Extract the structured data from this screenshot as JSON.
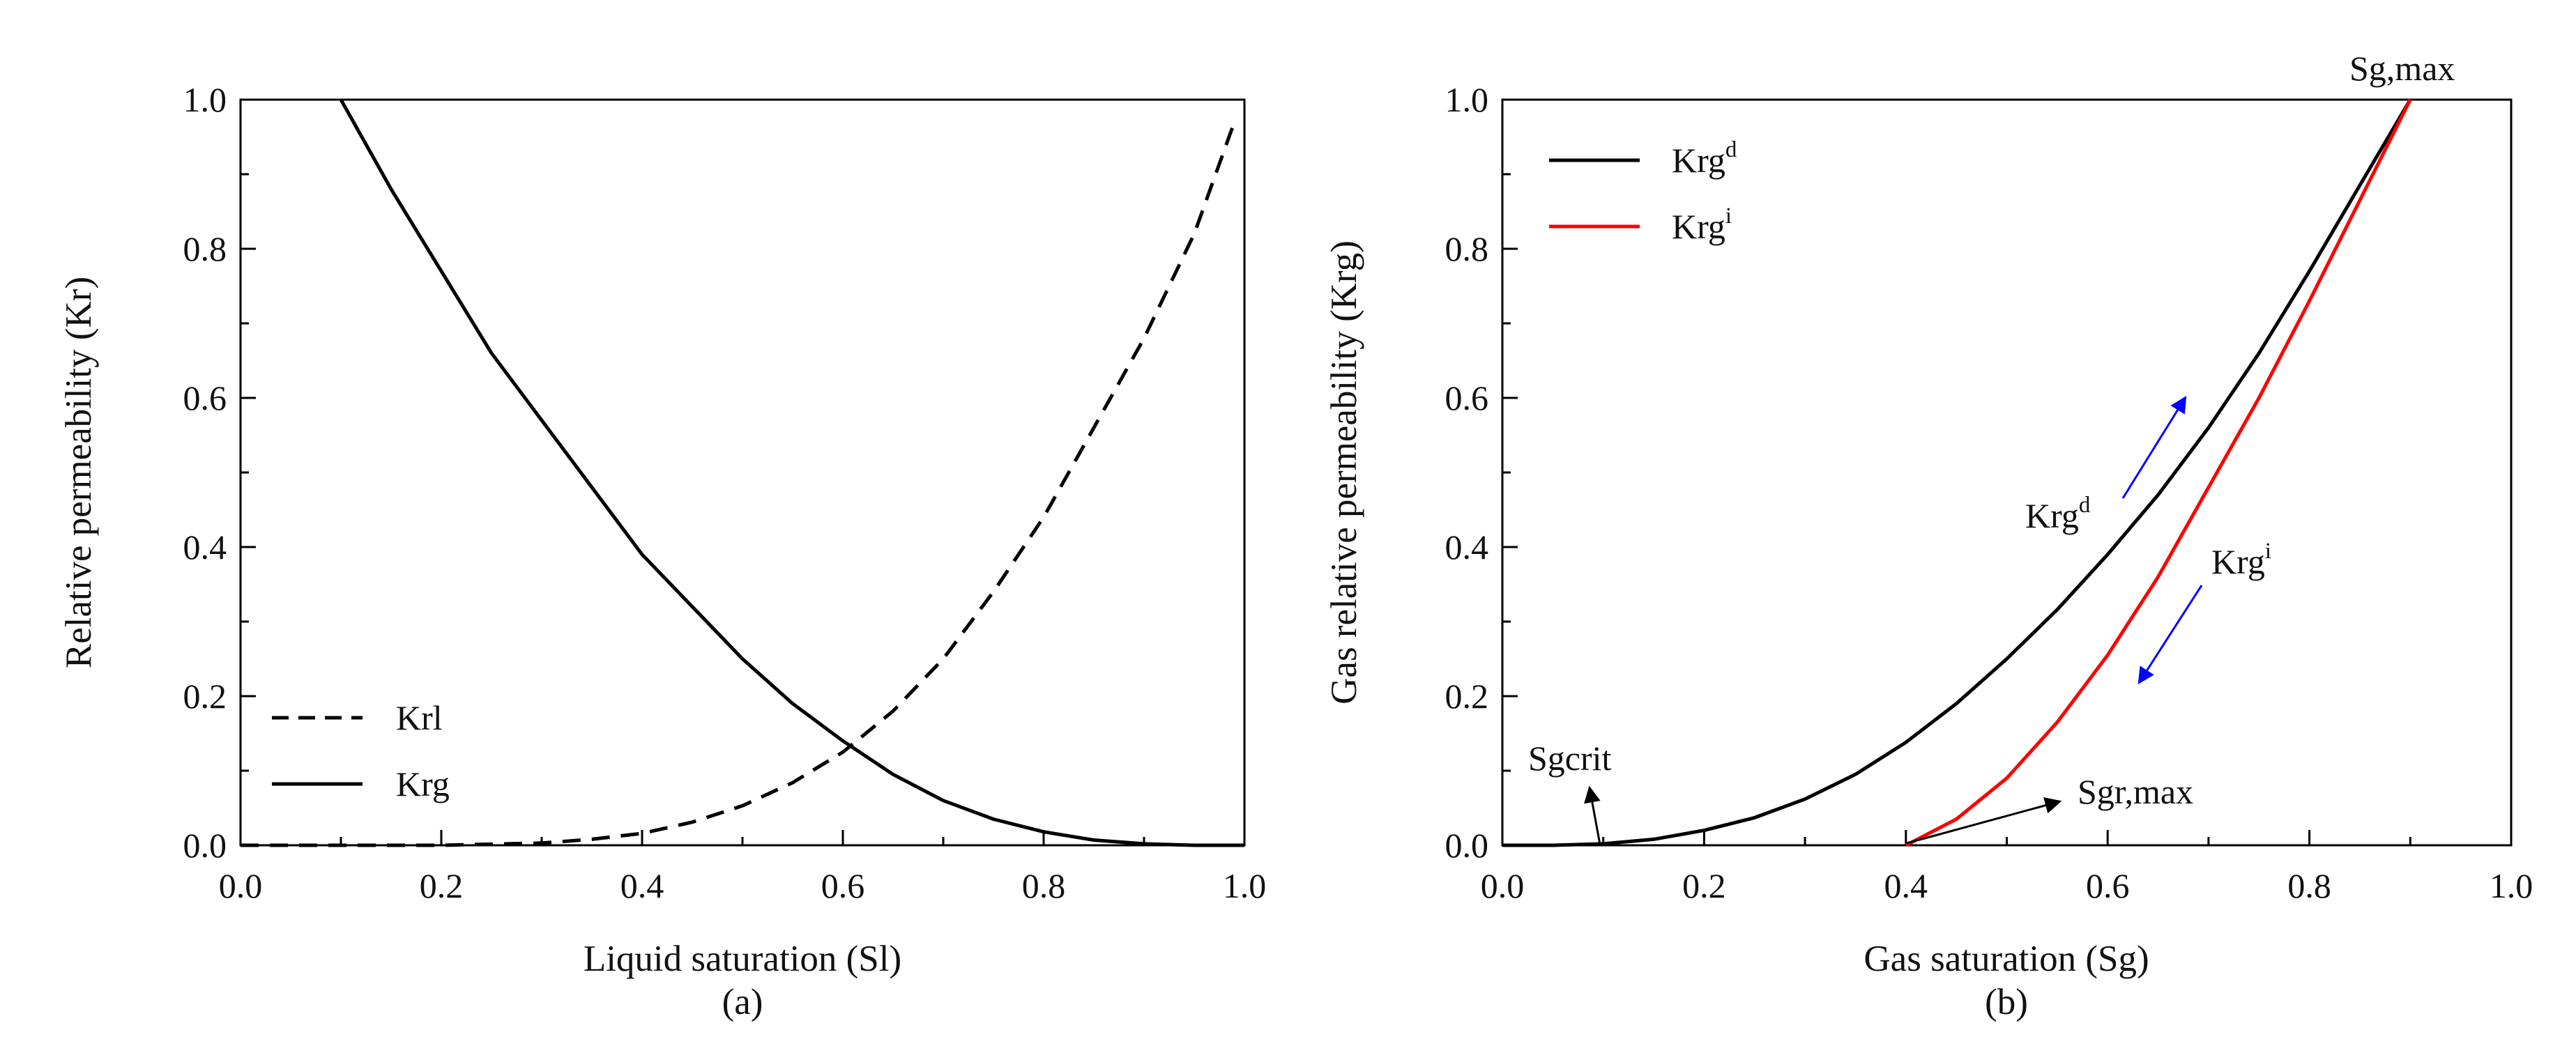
{
  "colors": {
    "black": "#000000",
    "red": "#ff0000",
    "blue": "#0000ff"
  },
  "chart_data": [
    {
      "type": "line",
      "panel_label": "(a)",
      "xlabel": "Liquid saturation (Sl)",
      "ylabel": "Relative permeability (Kr)",
      "xlim": [
        0,
        1
      ],
      "ylim": [
        0,
        1
      ],
      "x_ticks": [
        "0.0",
        "0.2",
        "0.4",
        "0.6",
        "0.8",
        "1.0"
      ],
      "y_ticks": [
        "0.0",
        "0.2",
        "0.4",
        "0.6",
        "0.8",
        "1.0"
      ],
      "grid": false,
      "legend_position": "bottom-left",
      "series": [
        {
          "name": "Krl",
          "style": "dashed",
          "color": "#000000",
          "points": [
            [
              0.0,
              0.0
            ],
            [
              0.1,
              0.0
            ],
            [
              0.2,
              0.0
            ],
            [
              0.3,
              0.003
            ],
            [
              0.35,
              0.008
            ],
            [
              0.4,
              0.016
            ],
            [
              0.45,
              0.031
            ],
            [
              0.5,
              0.053
            ],
            [
              0.55,
              0.084
            ],
            [
              0.6,
              0.125
            ],
            [
              0.65,
              0.18
            ],
            [
              0.7,
              0.25
            ],
            [
              0.75,
              0.34
            ],
            [
              0.8,
              0.44
            ],
            [
              0.85,
              0.56
            ],
            [
              0.9,
              0.68
            ],
            [
              0.95,
              0.82
            ],
            [
              0.99,
              0.97
            ]
          ]
        },
        {
          "name": "Krg",
          "style": "solid",
          "color": "#000000",
          "points": [
            [
              0.1,
              1.0
            ],
            [
              0.15,
              0.88
            ],
            [
              0.2,
              0.77
            ],
            [
              0.25,
              0.66
            ],
            [
              0.3,
              0.57
            ],
            [
              0.35,
              0.48
            ],
            [
              0.4,
              0.39
            ],
            [
              0.45,
              0.32
            ],
            [
              0.5,
              0.25
            ],
            [
              0.55,
              0.19
            ],
            [
              0.6,
              0.14
            ],
            [
              0.65,
              0.095
            ],
            [
              0.7,
              0.06
            ],
            [
              0.75,
              0.035
            ],
            [
              0.8,
              0.018
            ],
            [
              0.85,
              0.007
            ],
            [
              0.9,
              0.002
            ],
            [
              0.95,
              0.0
            ],
            [
              1.0,
              0.0
            ]
          ]
        }
      ]
    },
    {
      "type": "line",
      "panel_label": "(b)",
      "xlabel": "Gas saturation (Sg)",
      "ylabel": "Gas relative permeability (Krg)",
      "xlim": [
        0,
        1
      ],
      "ylim": [
        0,
        1
      ],
      "x_ticks": [
        "0.0",
        "0.2",
        "0.4",
        "0.6",
        "0.8",
        "1.0"
      ],
      "y_ticks": [
        "0.0",
        "0.2",
        "0.4",
        "0.6",
        "0.8",
        "1.0"
      ],
      "grid": false,
      "legend_position": "top-left",
      "series": [
        {
          "name": "Krg",
          "superscript": "d",
          "style": "solid",
          "color": "#000000",
          "points": [
            [
              0.0,
              0.0
            ],
            [
              0.05,
              0.0
            ],
            [
              0.1,
              0.002
            ],
            [
              0.15,
              0.008
            ],
            [
              0.2,
              0.02
            ],
            [
              0.25,
              0.037
            ],
            [
              0.3,
              0.062
            ],
            [
              0.35,
              0.095
            ],
            [
              0.4,
              0.138
            ],
            [
              0.45,
              0.19
            ],
            [
              0.5,
              0.25
            ],
            [
              0.55,
              0.316
            ],
            [
              0.6,
              0.39
            ],
            [
              0.65,
              0.47
            ],
            [
              0.7,
              0.56
            ],
            [
              0.75,
              0.66
            ],
            [
              0.8,
              0.77
            ],
            [
              0.85,
              0.885
            ],
            [
              0.9,
              1.0
            ]
          ]
        },
        {
          "name": "Krg",
          "superscript": "i",
          "style": "solid",
          "color": "#ff0000",
          "points": [
            [
              0.4,
              0.0
            ],
            [
              0.45,
              0.035
            ],
            [
              0.5,
              0.09
            ],
            [
              0.55,
              0.165
            ],
            [
              0.6,
              0.255
            ],
            [
              0.65,
              0.36
            ],
            [
              0.7,
              0.48
            ],
            [
              0.75,
              0.6
            ],
            [
              0.8,
              0.73
            ],
            [
              0.85,
              0.865
            ],
            [
              0.9,
              1.0
            ]
          ]
        }
      ],
      "annotations": [
        {
          "text": "Sg,max"
        },
        {
          "text": "Sgcrit"
        },
        {
          "text": "Sgr,max"
        },
        {
          "text": "Krg",
          "superscript": "d"
        },
        {
          "text": "Krg",
          "superscript": "i"
        }
      ]
    }
  ]
}
